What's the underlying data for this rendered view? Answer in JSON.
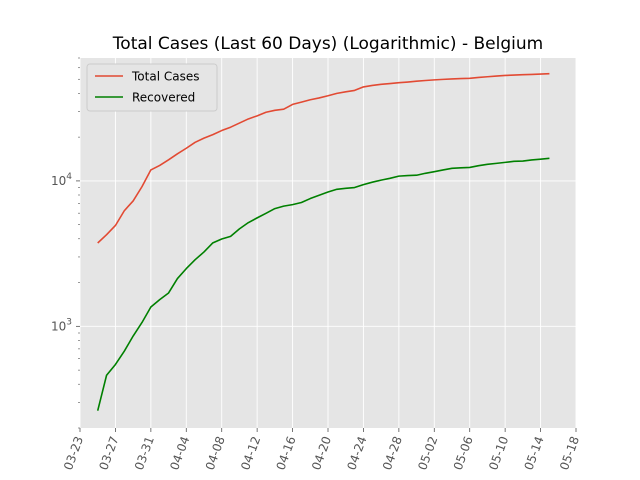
{
  "chart_data": {
    "type": "line",
    "title": "Total Cases (Last 60 Days) (Logarithmic) - Belgium",
    "xlabel": "",
    "ylabel": "",
    "y_scale": "log",
    "x_is_date": true,
    "grid": true,
    "legend_position": "top-left",
    "background": "#e5e5e5",
    "xlim": [
      "03-23",
      "05-18"
    ],
    "ylim": [
      200,
      70000
    ],
    "x_ticks": [
      "03-23",
      "03-27",
      "03-31",
      "04-04",
      "04-08",
      "04-12",
      "04-16",
      "04-20",
      "04-24",
      "04-28",
      "05-02",
      "05-06",
      "05-10",
      "05-14",
      "05-18"
    ],
    "y_ticks": [
      {
        "value": 1000,
        "base": "10",
        "exp": "3"
      },
      {
        "value": 10000,
        "base": "10",
        "exp": "4"
      }
    ],
    "x": [
      "03-25",
      "03-26",
      "03-27",
      "03-28",
      "03-29",
      "03-30",
      "03-31",
      "04-01",
      "04-02",
      "04-03",
      "04-04",
      "04-05",
      "04-06",
      "04-07",
      "04-08",
      "04-09",
      "04-10",
      "04-11",
      "04-12",
      "04-13",
      "04-14",
      "04-15",
      "04-16",
      "04-17",
      "04-18",
      "04-19",
      "04-20",
      "04-21",
      "04-22",
      "04-23",
      "04-24",
      "04-25",
      "04-26",
      "04-27",
      "04-28",
      "04-29",
      "04-30",
      "05-01",
      "05-02",
      "05-03",
      "05-04",
      "05-05",
      "05-06",
      "05-07",
      "05-08",
      "05-09",
      "05-10",
      "05-11",
      "05-12",
      "05-13",
      "05-14",
      "05-15"
    ],
    "series": [
      {
        "name": "Total Cases",
        "color": "#e24a33",
        "values": [
          3743,
          4269,
          4937,
          6235,
          7284,
          9134,
          11899,
          12775,
          13964,
          15348,
          16770,
          18431,
          19691,
          20814,
          22194,
          23403,
          24983,
          26667,
          28018,
          29647,
          30589,
          31119,
          33573,
          34809,
          36138,
          37183,
          38496,
          39983,
          40956,
          41889,
          44293,
          45325,
          46134,
          46687,
          47334,
          47859,
          48519,
          49032,
          49517,
          49906,
          50267,
          50509,
          50781,
          51420,
          52011,
          52596,
          53081,
          53449,
          53779,
          53981,
          54288,
          54644
        ]
      },
      {
        "name": "Recovered",
        "color": "#008000",
        "values": [
          263,
          461,
          547,
          675,
          858,
          1063,
          1359,
          1527,
          1696,
          2132,
          2495,
          2872,
          3247,
          3751,
          3986,
          4157,
          4681,
          5164,
          5568,
          5986,
          6452,
          6707,
          6868,
          7107,
          7562,
          7961,
          8384,
          8757,
          8895,
          9002,
          9433,
          9800,
          10122,
          10417,
          10785,
          10878,
          10943,
          11283,
          11576,
          11892,
          12211,
          12309,
          12378,
          12731,
          13011,
          13201,
          13411,
          13642,
          13697,
          13937,
          14111,
          14302
        ]
      }
    ]
  }
}
